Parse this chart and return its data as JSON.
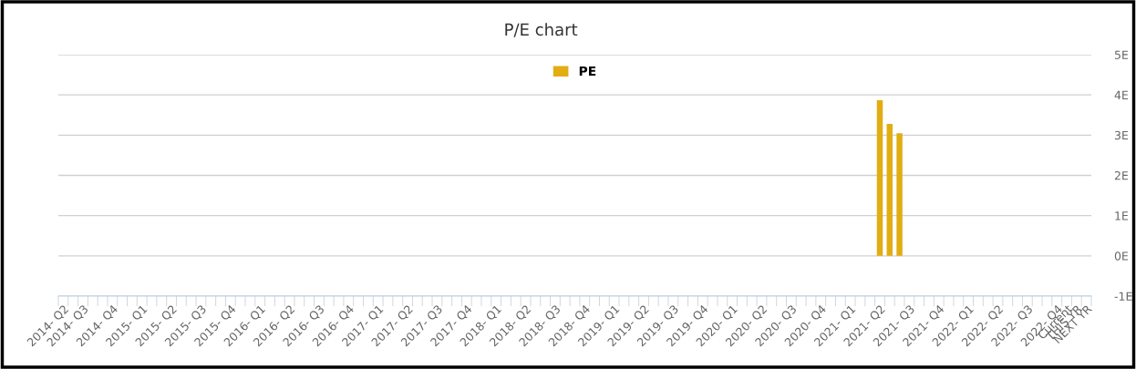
{
  "chart_data": {
    "type": "bar",
    "title": "P/E chart",
    "categories": [
      "2014- Q2",
      null,
      "2014- Q3",
      null,
      null,
      "2014- Q4",
      null,
      null,
      "2015- Q1",
      null,
      null,
      "2015- Q2",
      null,
      null,
      "2015- Q3",
      null,
      null,
      "2015- Q4",
      null,
      null,
      "2016- Q1",
      null,
      null,
      "2016- Q2",
      null,
      null,
      "2016- Q3",
      null,
      null,
      "2016- Q4",
      null,
      null,
      "2017- Q1",
      null,
      null,
      "2017- Q2",
      null,
      null,
      "2017- Q3",
      null,
      null,
      "2017- Q4",
      null,
      null,
      "2018- Q1",
      null,
      null,
      "2018- Q2",
      null,
      null,
      "2018- Q3",
      null,
      null,
      "2018- Q4",
      null,
      null,
      "2019- Q1",
      null,
      null,
      "2019- Q2",
      null,
      null,
      "2019- Q3",
      null,
      null,
      "2019- Q4",
      null,
      null,
      "2020- Q1",
      null,
      null,
      "2020- Q2",
      null,
      null,
      "2020- Q3",
      null,
      null,
      "2020- Q4",
      null,
      null,
      "2021- Q1",
      null,
      null,
      "2021- Q2",
      null,
      null,
      "2021- Q3",
      null,
      null,
      "2021- Q4",
      null,
      null,
      "2022- Q1",
      null,
      null,
      "2022- Q2",
      null,
      null,
      "2022- Q3",
      null,
      null,
      "2022- Q4",
      "Current",
      "THIS YR",
      "NEXT YR"
    ],
    "series": [
      {
        "name": "PE",
        "color": "#e1ad12",
        "values": [
          null,
          null,
          null,
          null,
          null,
          null,
          null,
          null,
          null,
          null,
          null,
          null,
          null,
          null,
          null,
          null,
          null,
          null,
          null,
          null,
          null,
          null,
          null,
          null,
          null,
          null,
          null,
          null,
          null,
          null,
          null,
          null,
          null,
          null,
          null,
          null,
          null,
          null,
          null,
          null,
          null,
          null,
          null,
          null,
          null,
          null,
          null,
          null,
          null,
          null,
          null,
          null,
          null,
          null,
          null,
          null,
          null,
          null,
          null,
          null,
          null,
          null,
          null,
          null,
          null,
          null,
          null,
          null,
          null,
          null,
          null,
          null,
          null,
          null,
          null,
          null,
          null,
          null,
          null,
          null,
          null,
          null,
          null,
          3.87,
          3.28,
          3.05,
          null,
          null,
          null,
          null,
          null,
          null,
          null,
          null,
          null,
          null,
          null,
          null,
          null,
          null,
          null,
          null,
          null,
          null,
          null
        ]
      }
    ],
    "ylim": [
      -1,
      5
    ],
    "yticks": [
      {
        "value": -1,
        "label": "-1E"
      },
      {
        "value": 0,
        "label": "0E"
      },
      {
        "value": 1,
        "label": "1E"
      },
      {
        "value": 2,
        "label": "2E"
      },
      {
        "value": 3,
        "label": "3E"
      },
      {
        "value": 4,
        "label": "4E"
      },
      {
        "value": 5,
        "label": "5E"
      }
    ],
    "grid": "y",
    "legend": "top"
  }
}
